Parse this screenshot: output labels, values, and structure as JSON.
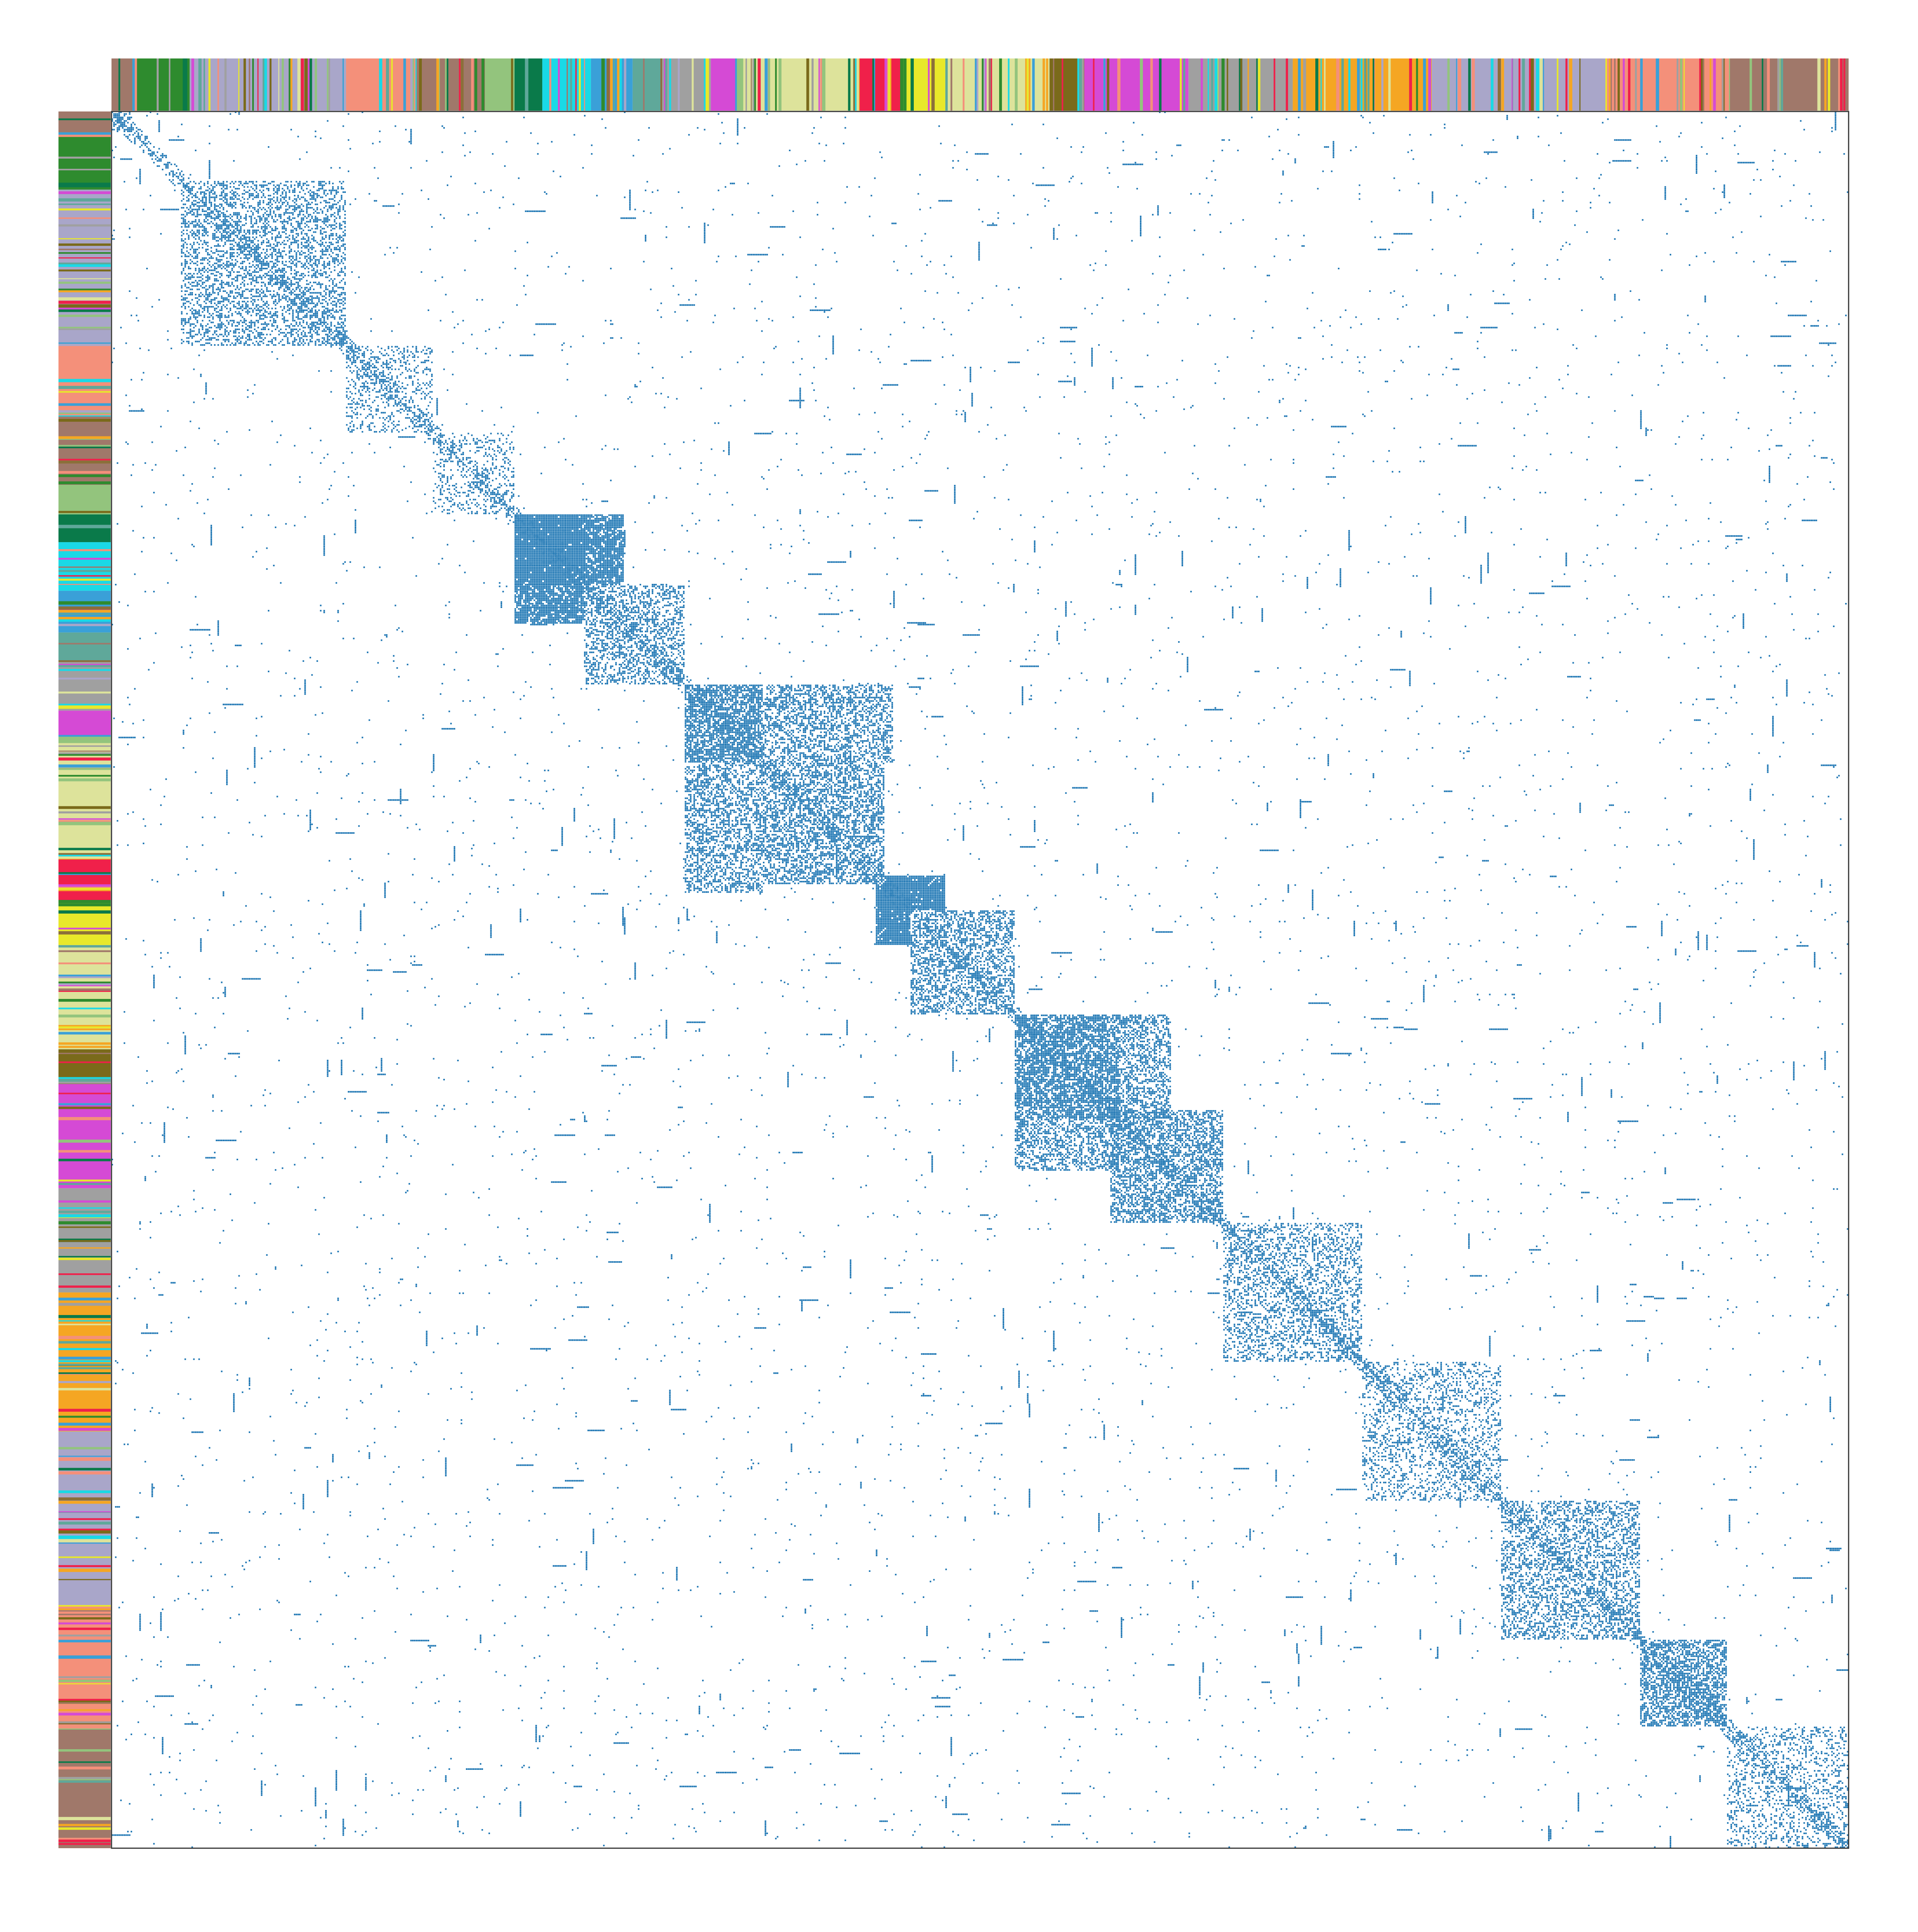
{
  "chart_data": {
    "type": "heatmap",
    "variant": "sparse-adjacency-matrix",
    "title": "",
    "xlabel": "",
    "ylabel": "",
    "legend": "none",
    "grid": false,
    "axes_ticks": false,
    "matrix_size": 1000,
    "mark_color": "#1f77b4",
    "background_color": "#ffffff",
    "annotation_bars": [
      "top",
      "left"
    ],
    "palette": {
      "rosy_brown": "#a0786a",
      "green": "#2e8b2e",
      "light_purple": "#a9a6c9",
      "salmon": "#f4907a",
      "olive_brown": "#8b6f3a",
      "dark_green": "#0a7a4a",
      "cyan": "#1ad9e6",
      "sky_blue": "#3aa0d8",
      "light_green": "#93c47d",
      "pale_yellow": "#dde39b",
      "crimson": "#f0204a",
      "yellow": "#e8e82a",
      "olive": "#7a6a1a",
      "magenta": "#d54ad5",
      "orange": "#f5a623",
      "gray": "#a0a0a0",
      "teal": "#5fa89a"
    },
    "category_segments": [
      {
        "start": 0,
        "end": 12,
        "color": "#a0786a"
      },
      {
        "start": 12,
        "end": 45,
        "color": "#2e8b2e"
      },
      {
        "start": 45,
        "end": 135,
        "color": "#a9a6c9"
      },
      {
        "start": 135,
        "end": 175,
        "color": "#f4907a"
      },
      {
        "start": 175,
        "end": 215,
        "color": "#a0786a"
      },
      {
        "start": 215,
        "end": 232,
        "color": "#93c47d"
      },
      {
        "start": 232,
        "end": 248,
        "color": "#0a7a4a"
      },
      {
        "start": 248,
        "end": 276,
        "color": "#1ad9e6"
      },
      {
        "start": 276,
        "end": 300,
        "color": "#3aa0d8"
      },
      {
        "start": 300,
        "end": 320,
        "color": "#5fa89a"
      },
      {
        "start": 320,
        "end": 345,
        "color": "#a0a0a0"
      },
      {
        "start": 345,
        "end": 360,
        "color": "#d54ad5"
      },
      {
        "start": 360,
        "end": 430,
        "color": "#dde39b"
      },
      {
        "start": 430,
        "end": 455,
        "color": "#f0204a"
      },
      {
        "start": 455,
        "end": 480,
        "color": "#e8e82a"
      },
      {
        "start": 480,
        "end": 540,
        "color": "#dde39b"
      },
      {
        "start": 540,
        "end": 560,
        "color": "#7a6a1a"
      },
      {
        "start": 560,
        "end": 620,
        "color": "#d54ad5"
      },
      {
        "start": 620,
        "end": 680,
        "color": "#a0a0a0"
      },
      {
        "start": 680,
        "end": 760,
        "color": "#f5a623"
      },
      {
        "start": 760,
        "end": 860,
        "color": "#a9a6c9"
      },
      {
        "start": 860,
        "end": 930,
        "color": "#f4907a"
      },
      {
        "start": 930,
        "end": 1000,
        "color": "#a0786a"
      }
    ],
    "dense_blocks": [
      {
        "rows": [
          0,
          12
        ],
        "cols": [
          0,
          12
        ],
        "density": 0.18
      },
      {
        "rows": [
          40,
          135
        ],
        "cols": [
          40,
          135
        ],
        "density": 0.2
      },
      {
        "rows": [
          135,
          185
        ],
        "cols": [
          135,
          185
        ],
        "density": 0.12
      },
      {
        "rows": [
          185,
          232
        ],
        "cols": [
          185,
          232
        ],
        "density": 0.1
      },
      {
        "rows": [
          232,
          272
        ],
        "cols": [
          232,
          295
        ],
        "density": 0.85
      },
      {
        "rows": [
          272,
          330
        ],
        "cols": [
          272,
          330
        ],
        "density": 0.22
      },
      {
        "rows": [
          330,
          375
        ],
        "cols": [
          330,
          450
        ],
        "density": 0.45
      },
      {
        "rows": [
          375,
          445
        ],
        "cols": [
          375,
          445
        ],
        "density": 0.28
      },
      {
        "rows": [
          440,
          460
        ],
        "cols": [
          445,
          480
        ],
        "density": 0.95
      },
      {
        "rows": [
          460,
          520
        ],
        "cols": [
          460,
          520
        ],
        "density": 0.25
      },
      {
        "rows": [
          520,
          580
        ],
        "cols": [
          520,
          610
        ],
        "density": 0.45
      },
      {
        "rows": [
          575,
          640
        ],
        "cols": [
          575,
          640
        ],
        "density": 0.3
      },
      {
        "rows": [
          640,
          720
        ],
        "cols": [
          640,
          720
        ],
        "density": 0.18
      },
      {
        "rows": [
          720,
          800
        ],
        "cols": [
          720,
          800
        ],
        "density": 0.14
      },
      {
        "rows": [
          800,
          880
        ],
        "cols": [
          800,
          880
        ],
        "density": 0.2
      },
      {
        "rows": [
          880,
          930
        ],
        "cols": [
          880,
          930
        ],
        "density": 0.35
      },
      {
        "rows": [
          930,
          1000
        ],
        "cols": [
          930,
          1000
        ],
        "density": 0.12
      }
    ],
    "diagonal_band_width": 6,
    "background_density": 0.003
  }
}
